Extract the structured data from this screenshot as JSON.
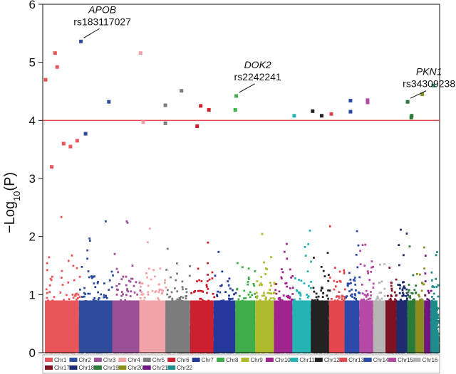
{
  "chart_data": {
    "type": "scatter",
    "title": "",
    "xlabel": "",
    "ylabel": "-Log10(P)",
    "ylabel_main": "−Log",
    "ylabel_sub": "10",
    "ylabel_paren": "(P)",
    "ylim": [
      0,
      6
    ],
    "yticks": [
      "0",
      "1",
      "2",
      "3",
      "4",
      "5",
      "6"
    ],
    "threshold": 4,
    "threshold_color": "#e8474b",
    "legend_position": "bottom",
    "chromosomes": [
      {
        "name": "Chr1",
        "color": "#e8555b",
        "rel": 2.49,
        "max": 2.5
      },
      {
        "name": "Chr2",
        "color": "#2f4c9c",
        "rel": 2.43,
        "max": 2.4
      },
      {
        "name": "Chr3",
        "color": "#9b4f96",
        "rel": 1.98,
        "max": 2.3
      },
      {
        "name": "Chr4",
        "color": "#f2a3a8",
        "rel": 1.91,
        "max": 2.5
      },
      {
        "name": "Chr5",
        "color": "#7c7c7c",
        "rel": 1.81,
        "max": 2.4
      },
      {
        "name": "Chr6",
        "color": "#cc1f2f",
        "rel": 1.71,
        "max": 2.6
      },
      {
        "name": "Chr7",
        "color": "#25399a",
        "rel": 1.59,
        "max": 2.2
      },
      {
        "name": "Chr8",
        "color": "#3fae4a",
        "rel": 1.45,
        "max": 2.3
      },
      {
        "name": "Chr9",
        "color": "#aebb2c",
        "rel": 1.38,
        "max": 2.1
      },
      {
        "name": "Chr10",
        "color": "#a0248f",
        "rel": 1.34,
        "max": 2.3
      },
      {
        "name": "Chr11",
        "color": "#25b3b3",
        "rel": 1.35,
        "max": 2.2
      },
      {
        "name": "Chr12",
        "color": "#222222",
        "rel": 1.33,
        "max": 2.1
      },
      {
        "name": "Chr13",
        "color": "#e2474e",
        "rel": 1.14,
        "max": 2.2
      },
      {
        "name": "Chr14",
        "color": "#2b49a8",
        "rel": 1.07,
        "max": 2.2
      },
      {
        "name": "Chr15",
        "color": "#b44aa6",
        "rel": 1.02,
        "max": 2.3
      },
      {
        "name": "Chr16",
        "color": "#b5b5b5",
        "rel": 0.9,
        "max": 2.2
      },
      {
        "name": "Chr17",
        "color": "#7d1222",
        "rel": 0.81,
        "max": 2.3
      },
      {
        "name": "Chr18",
        "color": "#1c2c6e",
        "rel": 0.78,
        "max": 2.2
      },
      {
        "name": "Chr19",
        "color": "#2a7a3a",
        "rel": 0.59,
        "max": 2.4
      },
      {
        "name": "Chr20",
        "color": "#8a8e1c",
        "rel": 0.64,
        "max": 2.2
      },
      {
        "name": "Chr21",
        "color": "#6e1780",
        "rel": 0.47,
        "max": 2.2
      },
      {
        "name": "Chr22",
        "color": "#1f8c8c",
        "rel": 0.51,
        "max": 2.0
      }
    ],
    "highlight_points": [
      {
        "chr": "Chr1",
        "pos": 0.02,
        "y": 4.7
      },
      {
        "chr": "Chr1",
        "pos": 0.3,
        "y": 5.16
      },
      {
        "chr": "Chr1",
        "pos": 0.36,
        "y": 4.92
      },
      {
        "chr": "Chr1",
        "pos": 0.55,
        "y": 3.6
      },
      {
        "chr": "Chr1",
        "pos": 0.75,
        "y": 3.55
      },
      {
        "chr": "Chr1",
        "pos": 0.95,
        "y": 3.65
      },
      {
        "chr": "Chr1",
        "pos": 0.2,
        "y": 3.2
      },
      {
        "chr": "Chr2",
        "pos": 0.06,
        "y": 5.36
      },
      {
        "chr": "Chr2",
        "pos": 0.2,
        "y": 3.77
      },
      {
        "chr": "Chr2",
        "pos": 0.9,
        "y": 4.32
      },
      {
        "chr": "Chr4",
        "pos": 0.05,
        "y": 5.16
      },
      {
        "chr": "Chr4",
        "pos": 0.15,
        "y": 3.97
      },
      {
        "chr": "Chr5",
        "pos": 0.0,
        "y": 4.26
      },
      {
        "chr": "Chr5",
        "pos": 0.0,
        "y": 3.95
      },
      {
        "chr": "Chr5",
        "pos": 0.65,
        "y": 4.51
      },
      {
        "chr": "Chr6",
        "pos": 0.45,
        "y": 4.25
      },
      {
        "chr": "Chr6",
        "pos": 0.8,
        "y": 4.18
      },
      {
        "chr": "Chr6",
        "pos": 0.3,
        "y": 3.9
      },
      {
        "chr": "Chr8",
        "pos": 0.0,
        "y": 4.18
      },
      {
        "chr": "Chr8",
        "pos": 0.05,
        "y": 4.42
      },
      {
        "chr": "Chr11",
        "pos": 0.1,
        "y": 4.08
      },
      {
        "chr": "Chr12",
        "pos": 0.1,
        "y": 4.16
      },
      {
        "chr": "Chr12",
        "pos": 0.6,
        "y": 4.08
      },
      {
        "chr": "Chr13",
        "pos": 0.15,
        "y": 4.11
      },
      {
        "chr": "Chr14",
        "pos": 0.4,
        "y": 4.34
      },
      {
        "chr": "Chr14",
        "pos": 0.4,
        "y": 4.15
      },
      {
        "chr": "Chr15",
        "pos": 0.6,
        "y": 4.35
      },
      {
        "chr": "Chr15",
        "pos": 0.6,
        "y": 4.31
      },
      {
        "chr": "Chr19",
        "pos": 0.05,
        "y": 4.32
      },
      {
        "chr": "Chr19",
        "pos": 0.55,
        "y": 4.08
      },
      {
        "chr": "Chr19",
        "pos": 0.5,
        "y": 4.05
      },
      {
        "chr": "Chr20",
        "pos": 0.8,
        "y": 4.45
      },
      {
        "chr": "Chr22",
        "pos": 0.4,
        "y": 4.6
      }
    ],
    "annotations": [
      {
        "gene": "APOB",
        "snp": "rs183117027",
        "chr": "Chr2",
        "pos": 0.06,
        "y": 5.36,
        "text_y": 5.85
      },
      {
        "gene": "DOK2",
        "snp": "rs2242241",
        "chr": "Chr8",
        "pos": 0.05,
        "y": 4.42,
        "text_y": 4.9
      },
      {
        "gene": "PKN1",
        "snp": "rs34309238",
        "chr": "Chr19",
        "pos": 0.05,
        "y": 4.32,
        "text_y": 4.78
      }
    ]
  }
}
